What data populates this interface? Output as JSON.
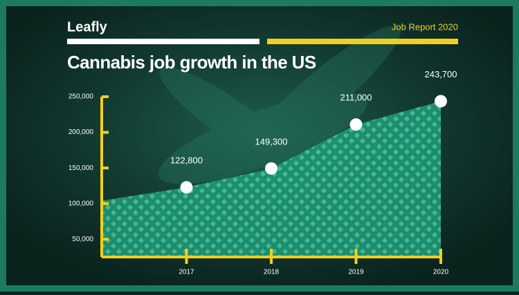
{
  "header": {
    "logo": "Leafly",
    "report": "Job Report 2020"
  },
  "chart_data": {
    "type": "area",
    "title": "Cannabis job growth in the US",
    "categories": [
      null,
      "2017",
      "2018",
      "2019",
      "2020"
    ],
    "values": [
      104000,
      122800,
      149300,
      211000,
      243700
    ],
    "value_labels": [
      null,
      "122,800",
      "149,300",
      "211,000",
      "243,700"
    ],
    "color": "#1f9474",
    "pattern_color": "#44c79a",
    "axis_color": "#f2cf1d",
    "ylim": [
      25000,
      250000
    ],
    "yticks": [
      {
        "value": 50000,
        "label": "50,000"
      },
      {
        "value": 100000,
        "label": "100,000"
      },
      {
        "value": 150000,
        "label": "150,000"
      },
      {
        "value": 200000,
        "label": "200,000"
      },
      {
        "value": 250000,
        "label": "250,000"
      }
    ]
  }
}
